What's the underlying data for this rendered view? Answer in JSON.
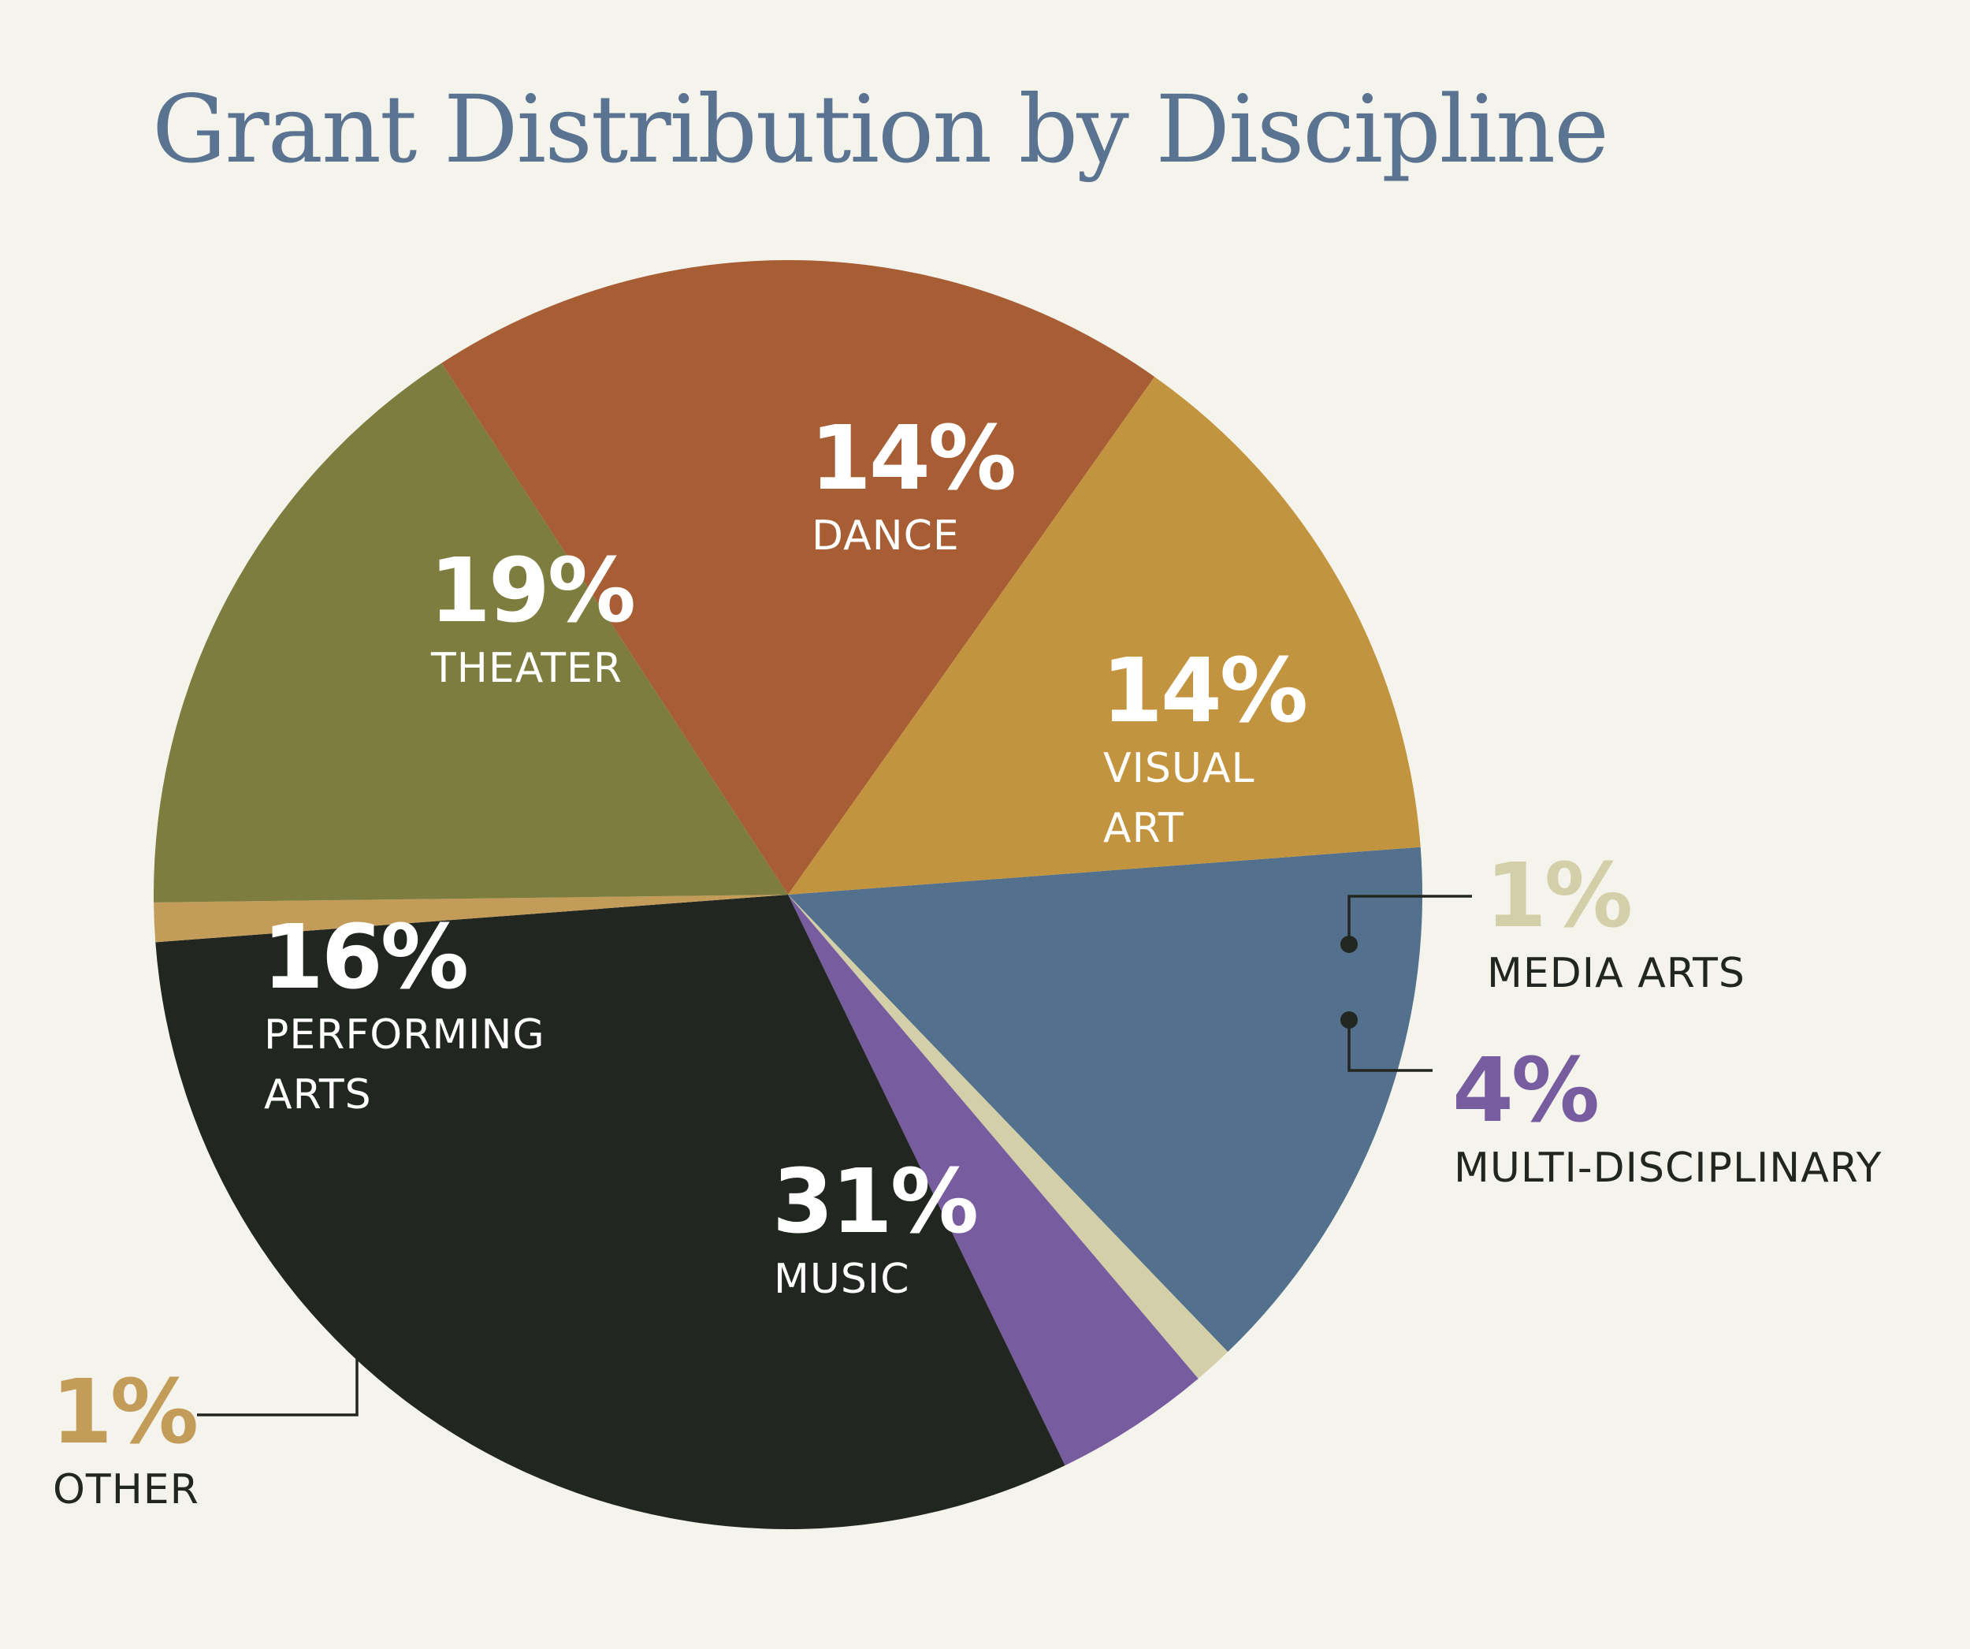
{
  "chart_data": {
    "type": "pie",
    "title": "Grant Distribution by Discipline",
    "slices": [
      {
        "label": "VISUAL ART",
        "value": 14,
        "value_label": "14%",
        "color": "#53718d"
      },
      {
        "label": "MEDIA ARTS",
        "value": 1,
        "value_label": "1%",
        "color": "#d3cfa8"
      },
      {
        "label": "MULTI-DISCIPLINARY",
        "value": 4,
        "value_label": "4%",
        "color": "#775da0"
      },
      {
        "label": "MUSIC",
        "value": 31,
        "value_label": "31%",
        "color": "#222620"
      },
      {
        "label": "OTHER",
        "value": 1,
        "value_label": "1%",
        "color": "#c39c59"
      },
      {
        "label": "PERFORMING ARTS",
        "value": 16,
        "value_label": "16%",
        "color": "#7d7d3f"
      },
      {
        "label": "THEATER",
        "value": 19,
        "value_label": "19%",
        "color": "#a85e34"
      },
      {
        "label": "DANCE",
        "value": 14,
        "value_label": "14%",
        "color": "#c3943f"
      }
    ],
    "label_colors": {
      "inside": "#ffffff",
      "outside_category": "#222620"
    }
  }
}
